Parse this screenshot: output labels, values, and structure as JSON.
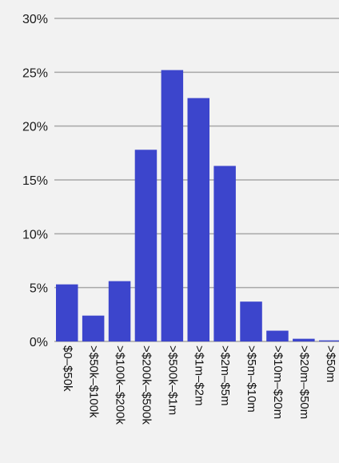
{
  "chart_data": {
    "type": "bar",
    "categories": [
      "$0–$50k",
      ">$50k–$100k",
      ">$100k–$200k",
      ">$200k–$500k",
      ">$500k–$1m",
      ">$1m–$2m",
      ">$2m–$5m",
      ">$5m–$10m",
      ">$10m–$20m",
      ">$20m–$50m",
      ">$50m"
    ],
    "values": [
      5.3,
      2.4,
      5.6,
      17.8,
      25.2,
      22.6,
      16.3,
      3.7,
      1.0,
      0.25,
      0.1
    ],
    "ylim": [
      0,
      30
    ],
    "yticks": [
      0,
      5,
      10,
      15,
      20,
      25,
      30
    ],
    "ytick_labels": [
      "0%",
      "5%",
      "10%",
      "15%",
      "20%",
      "25%",
      "30%"
    ],
    "grid": true,
    "bar_color": "#3c45cc",
    "grid_color": "#a8a8a8",
    "title": "",
    "xlabel": "",
    "ylabel": ""
  }
}
